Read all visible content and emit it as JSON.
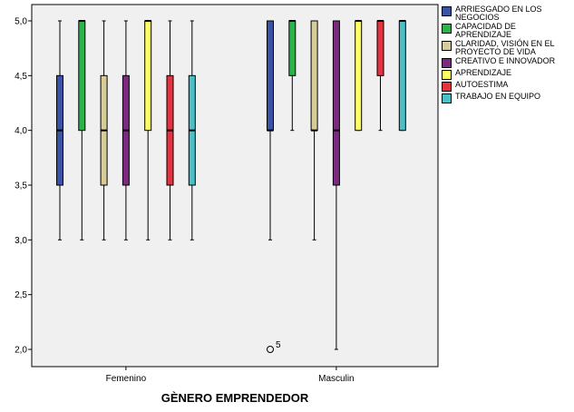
{
  "chart_data": {
    "type": "boxplot",
    "xlabel": "GÈNERO EMPRENDEDOR",
    "ylabel": "",
    "ylim": [
      1.9,
      5.1
    ],
    "yticks": [
      "2,0",
      "2,5",
      "3,0",
      "3,5",
      "4,0",
      "4,5",
      "5,0"
    ],
    "ytick_values": [
      2.0,
      2.5,
      3.0,
      3.5,
      4.0,
      4.5,
      5.0
    ],
    "categories": [
      "Femenino",
      "Masculin"
    ],
    "legend_position": "right",
    "grid": false,
    "series": [
      {
        "name": "ARRIESGADO EN LOS NEGOCIOS",
        "color": "#3a53a4",
        "boxes": [
          {
            "min": 3.0,
            "q1": 3.5,
            "median": 4.0,
            "q3": 4.5,
            "max": 5.0,
            "outliers": []
          },
          {
            "min": 3.0,
            "q1": 4.0,
            "median": 4.0,
            "q3": 5.0,
            "max": 5.0,
            "outliers": [
              {
                "value": 2.0,
                "label": "5"
              }
            ]
          }
        ]
      },
      {
        "name": "CAPACIDAD DE APRENDIZAJE",
        "color": "#2bb34b",
        "boxes": [
          {
            "min": 3.0,
            "q1": 4.0,
            "median": 5.0,
            "q3": 5.0,
            "max": 5.0,
            "outliers": []
          },
          {
            "min": 4.0,
            "q1": 4.5,
            "median": 5.0,
            "q3": 5.0,
            "max": 5.0,
            "outliers": []
          }
        ]
      },
      {
        "name": "CLARIDAD, VISIÓN EN EL PROYECTO DE VIDA",
        "color": "#d6cc9a",
        "boxes": [
          {
            "min": 3.0,
            "q1": 3.5,
            "median": 4.0,
            "q3": 4.5,
            "max": 5.0,
            "outliers": []
          },
          {
            "min": 3.0,
            "q1": 4.0,
            "median": 4.0,
            "q3": 5.0,
            "max": 5.0,
            "outliers": []
          }
        ]
      },
      {
        "name": "CREATIVO E INNOVADOR",
        "color": "#7b2b7e",
        "boxes": [
          {
            "min": 3.0,
            "q1": 3.5,
            "median": 4.0,
            "q3": 4.5,
            "max": 5.0,
            "outliers": []
          },
          {
            "min": 2.0,
            "q1": 3.5,
            "median": 4.0,
            "q3": 5.0,
            "max": 5.0,
            "outliers": []
          }
        ]
      },
      {
        "name": "APRENDIZAJE",
        "color": "#ffff66",
        "boxes": [
          {
            "min": 3.0,
            "q1": 4.0,
            "median": 5.0,
            "q3": 5.0,
            "max": 5.0,
            "outliers": []
          },
          {
            "min": 4.0,
            "q1": 4.0,
            "median": 5.0,
            "q3": 5.0,
            "max": 5.0,
            "outliers": []
          }
        ]
      },
      {
        "name": "AUTOESTIMA",
        "color": "#e8313f",
        "boxes": [
          {
            "min": 3.0,
            "q1": 3.5,
            "median": 4.0,
            "q3": 4.5,
            "max": 5.0,
            "outliers": []
          },
          {
            "min": 4.0,
            "q1": 4.5,
            "median": 5.0,
            "q3": 5.0,
            "max": 5.0,
            "outliers": []
          }
        ]
      },
      {
        "name": "TRABAJO EN EQUIPO",
        "color": "#4bc0c8",
        "boxes": [
          {
            "min": 3.0,
            "q1": 3.5,
            "median": 4.0,
            "q3": 4.5,
            "max": 5.0,
            "outliers": []
          },
          {
            "min": 4.0,
            "q1": 4.0,
            "median": 5.0,
            "q3": 5.0,
            "max": 5.0,
            "outliers": []
          }
        ]
      }
    ]
  }
}
